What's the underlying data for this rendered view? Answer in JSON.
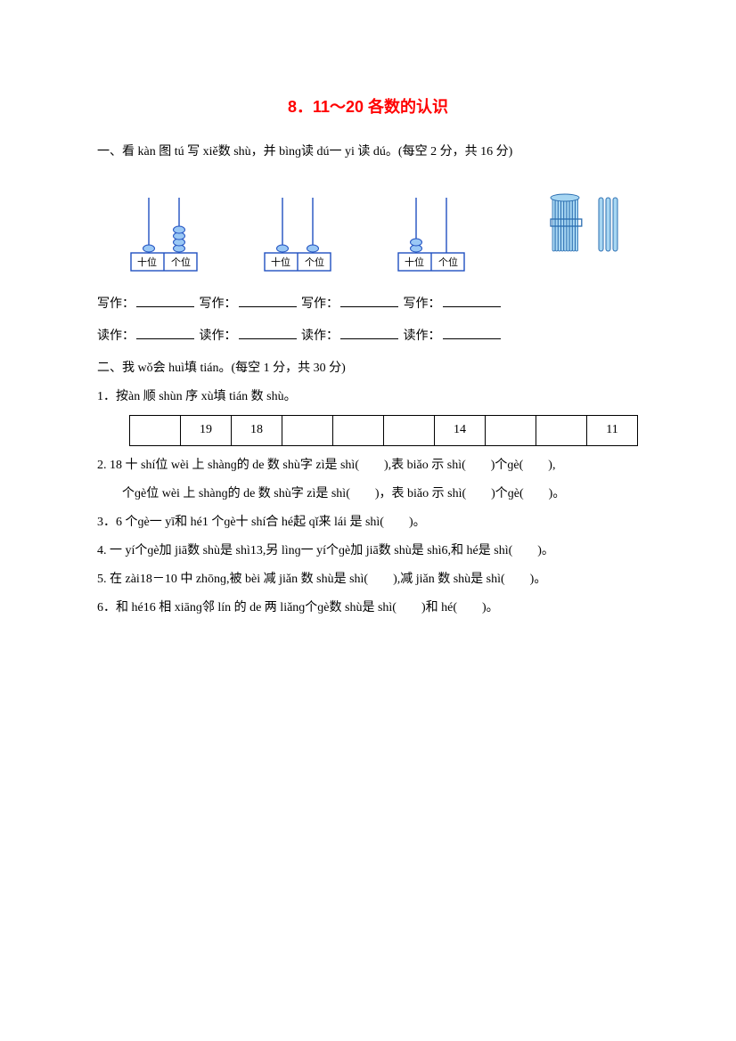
{
  "title": "8．11～20 各数的认识",
  "section1_heading": "一、看 kàn 图 tú 写 xiě数 shù，并 bìnɡ读 dú一 yi 读 dú。(每空 2 分，共 16 分)",
  "abacus": {
    "tens_label": "十位",
    "ones_label": "个位",
    "items": [
      {
        "tens_beads": 1,
        "ones_beads": 4
      },
      {
        "tens_beads": 1,
        "ones_beads": 1
      },
      {
        "tens_beads": 2,
        "ones_beads": 0
      }
    ],
    "bundle": {
      "bundle_count": 1,
      "loose_sticks": 3
    },
    "colors": {
      "frame": "#2050c0",
      "bead": "#9ac8f5",
      "rod": "#2050c0",
      "bundle_fill": "#a7d6f2",
      "bundle_stroke": "#2a6db0"
    }
  },
  "write_label": "写作：",
  "read_label": "读作：",
  "section2_heading": "二、我 wǒ会 huì填 tián。(每空 1 分，共 30 分)",
  "q1_label": "1．按àn 顺 shùn 序 xù填 tián 数 shù。",
  "q1_table": [
    "",
    "19",
    "18",
    "",
    "",
    "",
    "14",
    "",
    "",
    "11"
  ],
  "q2_line1": "2. 18 十 shí位 wèi 上 shànɡ的 de 数 shù字 zì是 shì(　　),表 biǎo 示 shì(　　)个ɡè(　　),",
  "q2_line2": "个ɡè位 wèi 上 shànɡ的 de 数 shù字 zì是 shì(　　)，表 biǎo 示 shì(　　)个ɡè(　　)。",
  "q3": "3．6 个ɡè一 yī和 hé1 个ɡè十 shí合 hé起 qǐ来 lái 是 shì(　　)。",
  "q4": "4. 一 yí个ɡè加 jiā数 shù是 shì13,另 lìnɡ一 yí个ɡè加 jiā数 shù是 shì6,和 hé是 shì(　　)。",
  "q5": "5. 在 zài18－10 中 zhōnɡ,被 bèi 减 jiǎn 数 shù是 shì(　　),减 jiǎn 数 shù是 shì(　　)。",
  "q6": "6．和 hé16 相 xiānɡ邻 lín 的 de 两 liǎnɡ个ɡè数 shù是 shì(　　)和 hé(　　)。"
}
